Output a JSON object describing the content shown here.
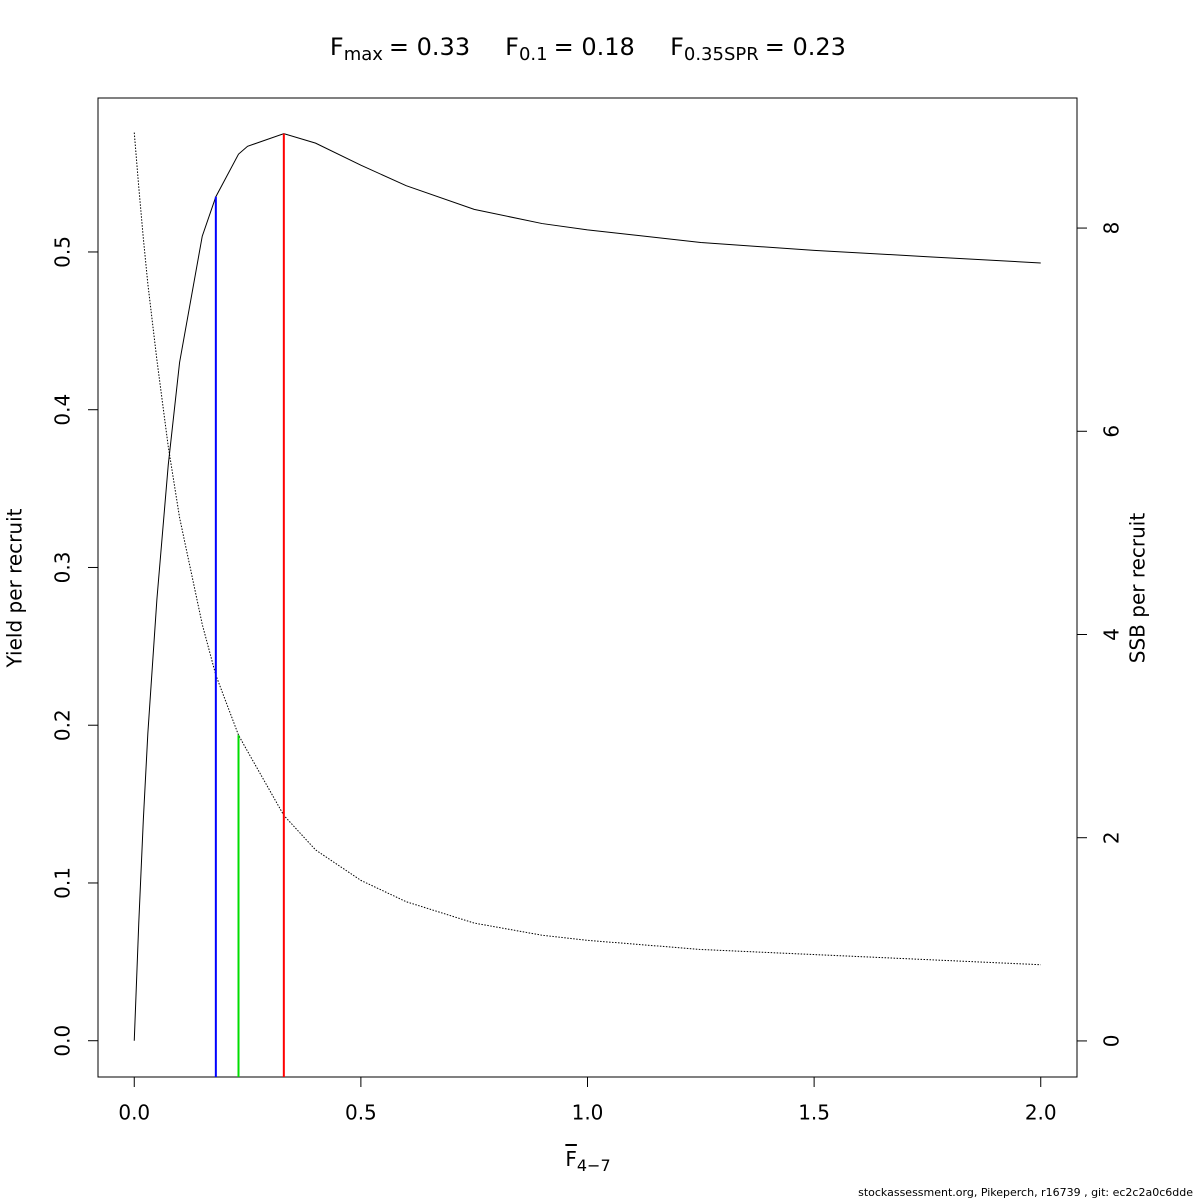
{
  "chart_data": {
    "type": "line",
    "refpoints": [
      {
        "symbol": "F",
        "subscript": "max",
        "value": 0.33,
        "value_label": "= 0.33",
        "color": "#ff0000",
        "line_top": 0.575,
        "axis": "y"
      },
      {
        "symbol": "F",
        "subscript": "0.1",
        "value": 0.18,
        "value_label": "= 0.18",
        "color": "#0000ff",
        "line_top": 0.535,
        "axis": "y"
      },
      {
        "symbol": "F",
        "subscript": "0.35SPR",
        "value": 0.23,
        "value_label": "= 0.23",
        "color": "#00dd00",
        "line_top": 3.01,
        "axis": "y2"
      }
    ],
    "xlabel": {
      "symbol": "F",
      "subscript": "4−7"
    },
    "ylabel": "Yield per recruit",
    "y2label": "SSB per recruit",
    "footer": "stockassessment.org, Pikeperch, r16739 , git: ec2c2a0c6dde",
    "x": [
      0,
      0.01,
      0.02,
      0.03,
      0.05,
      0.075,
      0.1,
      0.15,
      0.18,
      0.23,
      0.25,
      0.33,
      0.4,
      0.5,
      0.6,
      0.75,
      0.9,
      1.0,
      1.25,
      1.5,
      1.75,
      2.0
    ],
    "series": [
      {
        "color": "#000000",
        "dash": false,
        "axis": "y",
        "values": [
          0,
          0.075,
          0.14,
          0.195,
          0.28,
          0.365,
          0.43,
          0.51,
          0.535,
          0.562,
          0.567,
          0.575,
          0.569,
          0.555,
          0.542,
          0.527,
          0.518,
          0.514,
          0.506,
          0.501,
          0.497,
          0.493
        ]
      },
      {
        "color": "#000000",
        "dash": true,
        "axis": "y2",
        "values": [
          8.94,
          8.4,
          7.9,
          7.45,
          6.7,
          5.85,
          5.15,
          4.1,
          3.6,
          3.01,
          2.85,
          2.22,
          1.88,
          1.58,
          1.37,
          1.16,
          1.04,
          0.99,
          0.9,
          0.85,
          0.8,
          0.75
        ]
      }
    ],
    "xlim": [
      -0.08,
      2.08
    ],
    "xticks": [
      {
        "value": 0,
        "label": "0.0"
      },
      {
        "value": 0.5,
        "label": "0.5"
      },
      {
        "value": 1,
        "label": "1.0"
      },
      {
        "value": 1.5,
        "label": "1.5"
      },
      {
        "value": 2,
        "label": "2.0"
      }
    ],
    "ylim": [
      -0.023,
      0.5976
    ],
    "yticks": [
      {
        "value": 0,
        "label": "0.0"
      },
      {
        "value": 0.1,
        "label": "0.1"
      },
      {
        "value": 0.2,
        "label": "0.2"
      },
      {
        "value": 0.3,
        "label": "0.3"
      },
      {
        "value": 0.4,
        "label": "0.4"
      },
      {
        "value": 0.5,
        "label": "0.5"
      }
    ],
    "y2lim": [
      -0.355,
      9.28
    ],
    "y2ticks": [
      0,
      2,
      4,
      6,
      8
    ]
  }
}
